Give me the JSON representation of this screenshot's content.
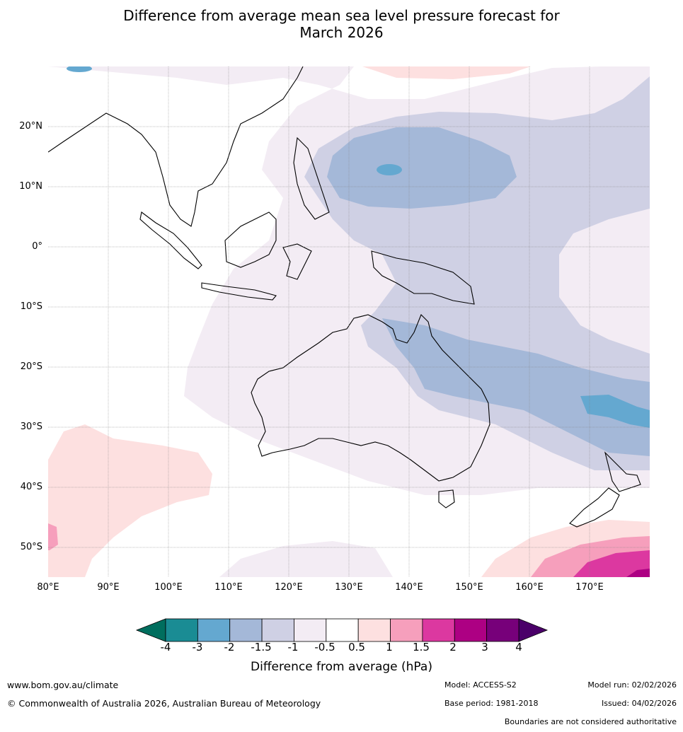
{
  "title": {
    "line1": "Difference from average mean sea level pressure forecast for",
    "line2": "March 2026"
  },
  "map": {
    "lat_labels": [
      "20°N",
      "10°N",
      "0°",
      "10°S",
      "20°S",
      "30°S",
      "40°S",
      "50°S"
    ],
    "lon_labels": [
      "80°E",
      "90°E",
      "100°E",
      "110°E",
      "120°E",
      "130°E",
      "140°E",
      "150°E",
      "160°E",
      "170°E"
    ]
  },
  "colorbar": {
    "ticks": [
      "-4",
      "-3",
      "-2",
      "-1.5",
      "-1",
      "-0.5",
      "0.5",
      "1",
      "1.5",
      "2",
      "3",
      "4"
    ],
    "colors": [
      "#1a8c94",
      "#64a8d0",
      "#a4b8d8",
      "#cfd0e4",
      "#f3ecf4",
      "#ffffff",
      "#fde0e0",
      "#f69fbc",
      "#dc38a0",
      "#ad0083",
      "#77007a"
    ],
    "under_color": "#006e5e",
    "over_color": "#4a0069",
    "label": "Difference from average (hPa)"
  },
  "footer": {
    "website": "www.bom.gov.au/climate",
    "copyright": "© Commonwealth of Australia 2026, Australian Bureau of Meteorology",
    "model": "Model: ACCESS-S2",
    "base_period": "Base period: 1981-2018",
    "model_run": "Model run: 02/02/2026",
    "issued": "Issued: 04/02/2026",
    "disclaimer": "Boundaries are not considered authoritative"
  }
}
